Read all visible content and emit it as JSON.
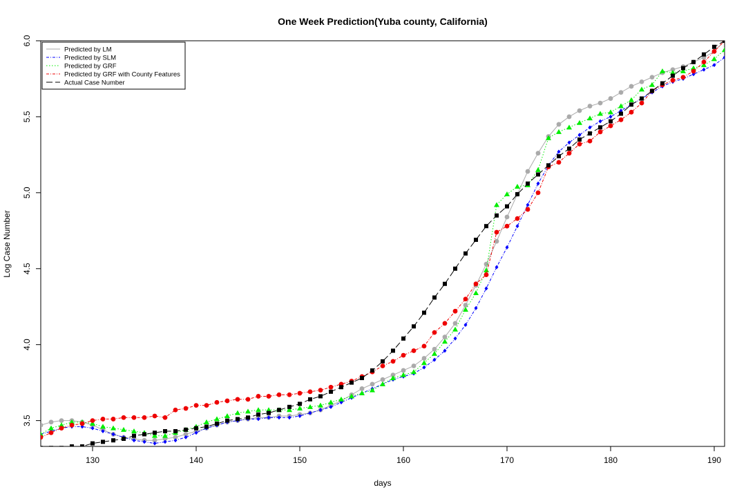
{
  "chart_data": {
    "type": "line",
    "title": "One Week Prediction(Yuba county, California)",
    "xlabel": "days",
    "ylabel": "Log Case Number",
    "xlim": [
      125,
      191
    ],
    "ylim": [
      3.33,
      6.0
    ],
    "x_ticks": [
      130,
      140,
      150,
      160,
      170,
      180,
      190
    ],
    "y_ticks": [
      3.5,
      4.0,
      4.5,
      5.0,
      5.5,
      6.0
    ],
    "x_tick_labels": [
      "130",
      "140",
      "150",
      "160",
      "170",
      "180",
      "190"
    ],
    "y_tick_labels": [
      "3.5",
      "4.0",
      "4.5",
      "5.0",
      "5.5",
      "6.0"
    ],
    "grid": false,
    "legend_position": "top-left",
    "x": [
      125,
      126,
      127,
      128,
      129,
      130,
      131,
      132,
      133,
      134,
      135,
      136,
      137,
      138,
      139,
      140,
      141,
      142,
      143,
      144,
      145,
      146,
      147,
      148,
      149,
      150,
      151,
      152,
      153,
      154,
      155,
      156,
      157,
      158,
      159,
      160,
      161,
      162,
      163,
      164,
      165,
      166,
      167,
      168,
      169,
      170,
      171,
      172,
      173,
      174,
      175,
      176,
      177,
      178,
      179,
      180,
      181,
      182,
      183,
      184,
      185,
      186,
      187,
      188,
      189,
      190,
      191
    ],
    "series": [
      {
        "name": "Predicted by LM",
        "color": "#aaaaaa",
        "marker": "circle",
        "line_style": "solid",
        "values": [
          3.47,
          3.49,
          3.5,
          3.5,
          3.49,
          3.47,
          3.44,
          3.41,
          3.39,
          3.38,
          3.37,
          3.37,
          3.38,
          3.39,
          3.41,
          3.43,
          3.45,
          3.47,
          3.49,
          3.5,
          3.51,
          3.52,
          3.52,
          3.53,
          3.53,
          3.54,
          3.55,
          3.57,
          3.6,
          3.63,
          3.67,
          3.71,
          3.74,
          3.77,
          3.8,
          3.83,
          3.86,
          3.91,
          3.97,
          4.05,
          4.14,
          4.26,
          4.39,
          4.53,
          4.68,
          4.84,
          4.99,
          5.14,
          5.26,
          5.37,
          5.45,
          5.5,
          5.54,
          5.57,
          5.59,
          5.62,
          5.66,
          5.7,
          5.73,
          5.76,
          5.79,
          5.81,
          5.83,
          5.86,
          5.89,
          5.93,
          6.0
        ]
      },
      {
        "name": "Predicted by SLM",
        "color": "#0000ff",
        "marker": "diamond",
        "line_style": "dashdot",
        "values": [
          3.41,
          3.43,
          3.45,
          3.46,
          3.46,
          3.45,
          3.43,
          3.41,
          3.39,
          3.37,
          3.36,
          3.35,
          3.36,
          3.37,
          3.39,
          3.42,
          3.45,
          3.47,
          3.49,
          3.5,
          3.51,
          3.51,
          3.52,
          3.52,
          3.52,
          3.53,
          3.55,
          3.57,
          3.59,
          3.62,
          3.65,
          3.68,
          3.71,
          3.74,
          3.77,
          3.79,
          3.81,
          3.85,
          3.9,
          3.96,
          4.04,
          4.13,
          4.24,
          4.37,
          4.51,
          4.64,
          4.78,
          4.92,
          5.06,
          5.18,
          5.27,
          5.33,
          5.38,
          5.43,
          5.47,
          5.5,
          5.54,
          5.58,
          5.62,
          5.66,
          5.7,
          5.73,
          5.75,
          5.78,
          5.81,
          5.84,
          5.89
        ]
      },
      {
        "name": "Predicted by GRF",
        "color": "#00ee00",
        "marker": "triangle",
        "line_style": "dotted",
        "values": [
          3.41,
          3.45,
          3.47,
          3.49,
          3.49,
          3.48,
          3.46,
          3.45,
          3.44,
          3.43,
          3.42,
          3.4,
          3.4,
          3.42,
          3.44,
          3.46,
          3.49,
          3.51,
          3.53,
          3.55,
          3.56,
          3.57,
          3.57,
          3.57,
          3.57,
          3.58,
          3.59,
          3.6,
          3.62,
          3.64,
          3.66,
          3.68,
          3.7,
          3.74,
          3.78,
          3.8,
          3.82,
          3.88,
          3.94,
          4.02,
          4.1,
          4.23,
          4.34,
          4.49,
          4.92,
          4.99,
          5.04,
          5.05,
          5.15,
          5.36,
          5.4,
          5.43,
          5.46,
          5.49,
          5.52,
          5.53,
          5.57,
          5.61,
          5.68,
          5.71,
          5.8,
          5.79,
          5.8,
          5.82,
          5.84,
          5.88,
          5.94
        ]
      },
      {
        "name": "Predicted by GRF with County Features",
        "color": "#ee0000",
        "marker": "circle",
        "line_style": "dashdot",
        "values": [
          3.39,
          3.42,
          3.45,
          3.47,
          3.48,
          3.5,
          3.51,
          3.51,
          3.52,
          3.52,
          3.52,
          3.53,
          3.52,
          3.57,
          3.58,
          3.6,
          3.6,
          3.62,
          3.63,
          3.64,
          3.64,
          3.66,
          3.66,
          3.67,
          3.67,
          3.68,
          3.69,
          3.7,
          3.72,
          3.74,
          3.76,
          3.79,
          3.82,
          3.86,
          3.89,
          3.93,
          3.96,
          3.99,
          4.08,
          4.14,
          4.22,
          4.3,
          4.4,
          4.46,
          4.74,
          4.78,
          4.83,
          4.89,
          5.0,
          5.17,
          5.2,
          5.26,
          5.32,
          5.34,
          5.4,
          5.44,
          5.48,
          5.53,
          5.59,
          5.67,
          5.71,
          5.74,
          5.76,
          5.8,
          5.86,
          5.93,
          6.0
        ]
      },
      {
        "name": "Actual Case Number",
        "color": "#000000",
        "marker": "square",
        "line_style": "longdash",
        "values": [
          3.32,
          3.32,
          3.32,
          3.33,
          3.33,
          3.35,
          3.36,
          3.37,
          3.38,
          3.4,
          3.41,
          3.42,
          3.43,
          3.43,
          3.44,
          3.45,
          3.46,
          3.48,
          3.5,
          3.51,
          3.52,
          3.54,
          3.55,
          3.57,
          3.59,
          3.61,
          3.64,
          3.66,
          3.69,
          3.72,
          3.75,
          3.78,
          3.83,
          3.89,
          3.96,
          4.04,
          4.12,
          4.21,
          4.31,
          4.4,
          4.5,
          4.6,
          4.69,
          4.78,
          4.85,
          4.91,
          4.99,
          5.06,
          5.12,
          5.18,
          5.24,
          5.29,
          5.35,
          5.39,
          5.43,
          5.47,
          5.52,
          5.58,
          5.62,
          5.67,
          5.72,
          5.77,
          5.82,
          5.86,
          5.91,
          5.96,
          6.0
        ]
      }
    ]
  }
}
